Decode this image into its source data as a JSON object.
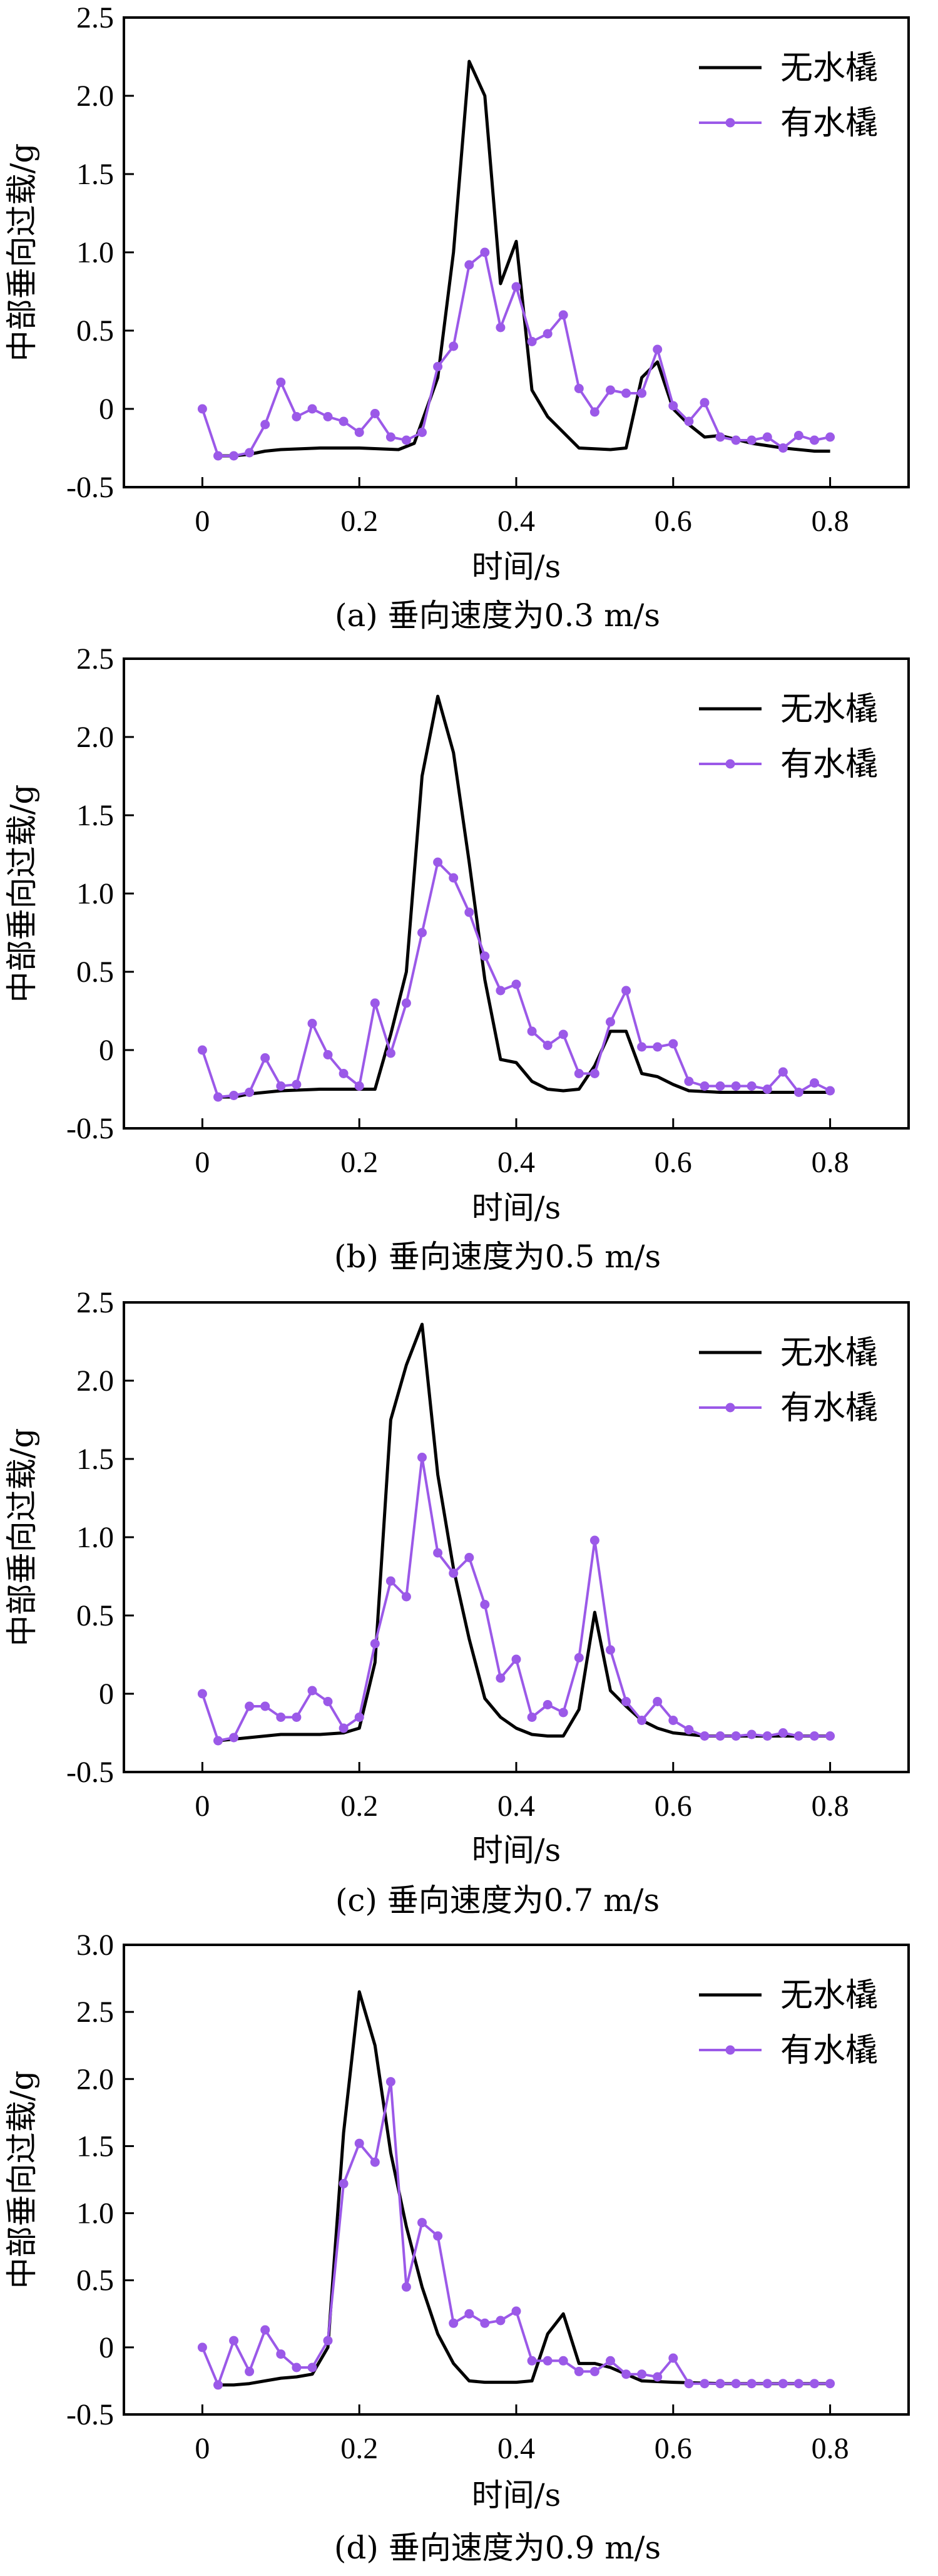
{
  "chart_data": [
    {
      "type": "line",
      "caption": "(a) 垂向速度为0.3 m/s",
      "xlabel": "时间/s",
      "ylabel": "中部垂向过载/g",
      "xlim": [
        -0.1,
        0.9
      ],
      "ylim": [
        -0.5,
        2.5
      ],
      "xticks": [
        "0",
        "0.2",
        "0.4",
        "0.6",
        "0.8"
      ],
      "xtick_values": [
        0,
        0.2,
        0.4,
        0.6,
        0.8
      ],
      "yticks": [
        "-0.5",
        "0",
        "0.5",
        "1.0",
        "1.5",
        "2.0",
        "2.5"
      ],
      "ytick_values": [
        -0.5,
        0,
        0.5,
        1.0,
        1.5,
        2.0,
        2.5
      ],
      "legend_position": "top-right",
      "series": [
        {
          "name": "无水橇",
          "color": "#000000",
          "markers": false,
          "x": [
            0.02,
            0.04,
            0.06,
            0.08,
            0.1,
            0.15,
            0.2,
            0.25,
            0.27,
            0.3,
            0.32,
            0.34,
            0.36,
            0.38,
            0.4,
            0.42,
            0.44,
            0.48,
            0.52,
            0.54,
            0.56,
            0.58,
            0.6,
            0.62,
            0.64,
            0.66,
            0.7,
            0.74,
            0.78,
            0.8
          ],
          "y": [
            -0.3,
            -0.3,
            -0.29,
            -0.27,
            -0.26,
            -0.25,
            -0.25,
            -0.26,
            -0.22,
            0.2,
            1.0,
            2.22,
            2.0,
            0.8,
            1.07,
            0.12,
            -0.05,
            -0.25,
            -0.26,
            -0.25,
            0.2,
            0.3,
            0.0,
            -0.1,
            -0.18,
            -0.17,
            -0.22,
            -0.25,
            -0.27,
            -0.27
          ]
        },
        {
          "name": "有水橇",
          "color": "#9b59e8",
          "markers": true,
          "x": [
            0.0,
            0.02,
            0.04,
            0.06,
            0.08,
            0.1,
            0.12,
            0.14,
            0.16,
            0.18,
            0.2,
            0.22,
            0.24,
            0.26,
            0.28,
            0.3,
            0.32,
            0.34,
            0.36,
            0.38,
            0.4,
            0.42,
            0.44,
            0.46,
            0.48,
            0.5,
            0.52,
            0.54,
            0.56,
            0.58,
            0.6,
            0.62,
            0.64,
            0.66,
            0.68,
            0.7,
            0.72,
            0.74,
            0.76,
            0.78,
            0.8
          ],
          "y": [
            0.0,
            -0.3,
            -0.3,
            -0.28,
            -0.1,
            0.17,
            -0.05,
            0.0,
            -0.05,
            -0.08,
            -0.15,
            -0.03,
            -0.18,
            -0.2,
            -0.15,
            0.27,
            0.4,
            0.92,
            1.0,
            0.52,
            0.78,
            0.43,
            0.48,
            0.6,
            0.13,
            -0.02,
            0.12,
            0.1,
            0.1,
            0.38,
            0.02,
            -0.08,
            0.04,
            -0.18,
            -0.2,
            -0.2,
            -0.18,
            -0.25,
            -0.17,
            -0.2,
            -0.18
          ]
        }
      ]
    },
    {
      "type": "line",
      "caption": "(b) 垂向速度为0.5 m/s",
      "xlabel": "时间/s",
      "ylabel": "中部垂向过载/g",
      "xlim": [
        -0.1,
        0.9
      ],
      "ylim": [
        -0.5,
        2.5
      ],
      "xticks": [
        "0",
        "0.2",
        "0.4",
        "0.6",
        "0.8"
      ],
      "xtick_values": [
        0,
        0.2,
        0.4,
        0.6,
        0.8
      ],
      "yticks": [
        "-0.5",
        "0",
        "0.5",
        "1.0",
        "1.5",
        "2.0",
        "2.5"
      ],
      "ytick_values": [
        -0.5,
        0,
        0.5,
        1.0,
        1.5,
        2.0,
        2.5
      ],
      "legend_position": "top-right",
      "series": [
        {
          "name": "无水橇",
          "color": "#000000",
          "markers": false,
          "x": [
            0.02,
            0.04,
            0.06,
            0.08,
            0.1,
            0.15,
            0.2,
            0.22,
            0.24,
            0.26,
            0.28,
            0.3,
            0.32,
            0.34,
            0.36,
            0.38,
            0.4,
            0.42,
            0.44,
            0.46,
            0.48,
            0.5,
            0.52,
            0.54,
            0.56,
            0.58,
            0.6,
            0.62,
            0.66,
            0.7,
            0.74,
            0.78,
            0.8
          ],
          "y": [
            -0.3,
            -0.3,
            -0.28,
            -0.27,
            -0.26,
            -0.25,
            -0.25,
            -0.25,
            0.1,
            0.5,
            1.75,
            2.26,
            1.9,
            1.2,
            0.45,
            -0.06,
            -0.08,
            -0.2,
            -0.25,
            -0.26,
            -0.25,
            -0.1,
            0.12,
            0.12,
            -0.15,
            -0.17,
            -0.22,
            -0.26,
            -0.27,
            -0.27,
            -0.27,
            -0.27,
            -0.27
          ]
        },
        {
          "name": "有水橇",
          "color": "#9b59e8",
          "markers": true,
          "x": [
            0.0,
            0.02,
            0.04,
            0.06,
            0.08,
            0.1,
            0.12,
            0.14,
            0.16,
            0.18,
            0.2,
            0.22,
            0.24,
            0.26,
            0.28,
            0.3,
            0.32,
            0.34,
            0.36,
            0.38,
            0.4,
            0.42,
            0.44,
            0.46,
            0.48,
            0.5,
            0.52,
            0.54,
            0.56,
            0.58,
            0.6,
            0.62,
            0.64,
            0.66,
            0.68,
            0.7,
            0.72,
            0.74,
            0.76,
            0.78,
            0.8
          ],
          "y": [
            0.0,
            -0.3,
            -0.29,
            -0.27,
            -0.05,
            -0.23,
            -0.22,
            0.17,
            -0.03,
            -0.15,
            -0.23,
            0.3,
            -0.02,
            0.3,
            0.75,
            1.2,
            1.1,
            0.88,
            0.6,
            0.38,
            0.42,
            0.12,
            0.03,
            0.1,
            -0.15,
            -0.15,
            0.18,
            0.38,
            0.02,
            0.02,
            0.04,
            -0.2,
            -0.23,
            -0.23,
            -0.23,
            -0.23,
            -0.25,
            -0.14,
            -0.27,
            -0.21,
            -0.26
          ]
        }
      ]
    },
    {
      "type": "line",
      "caption": "(c) 垂向速度为0.7 m/s",
      "xlabel": "时间/s",
      "ylabel": "中部垂向过载/g",
      "xlim": [
        -0.1,
        0.9
      ],
      "ylim": [
        -0.5,
        2.5
      ],
      "xticks": [
        "0",
        "0.2",
        "0.4",
        "0.6",
        "0.8"
      ],
      "xtick_values": [
        0,
        0.2,
        0.4,
        0.6,
        0.8
      ],
      "yticks": [
        "-0.5",
        "0",
        "0.5",
        "1.0",
        "1.5",
        "2.0",
        "2.5"
      ],
      "ytick_values": [
        -0.5,
        0,
        0.5,
        1.0,
        1.5,
        2.0,
        2.5
      ],
      "legend_position": "top-right",
      "series": [
        {
          "name": "无水橇",
          "color": "#000000",
          "markers": false,
          "x": [
            0.02,
            0.04,
            0.06,
            0.08,
            0.1,
            0.15,
            0.18,
            0.2,
            0.22,
            0.24,
            0.26,
            0.28,
            0.3,
            0.32,
            0.34,
            0.36,
            0.38,
            0.4,
            0.42,
            0.44,
            0.46,
            0.48,
            0.5,
            0.52,
            0.54,
            0.56,
            0.58,
            0.6,
            0.64,
            0.7,
            0.74,
            0.78,
            0.8
          ],
          "y": [
            -0.3,
            -0.29,
            -0.28,
            -0.27,
            -0.26,
            -0.26,
            -0.25,
            -0.22,
            0.2,
            1.75,
            2.1,
            2.36,
            1.4,
            0.8,
            0.35,
            -0.03,
            -0.15,
            -0.22,
            -0.26,
            -0.27,
            -0.27,
            -0.1,
            0.52,
            0.02,
            -0.08,
            -0.17,
            -0.22,
            -0.25,
            -0.27,
            -0.27,
            -0.27,
            -0.27,
            -0.27
          ]
        },
        {
          "name": "有水橇",
          "color": "#9b59e8",
          "markers": true,
          "x": [
            0.0,
            0.02,
            0.04,
            0.06,
            0.08,
            0.1,
            0.12,
            0.14,
            0.16,
            0.18,
            0.2,
            0.22,
            0.24,
            0.26,
            0.28,
            0.3,
            0.32,
            0.34,
            0.36,
            0.38,
            0.4,
            0.42,
            0.44,
            0.46,
            0.48,
            0.5,
            0.52,
            0.54,
            0.56,
            0.58,
            0.6,
            0.62,
            0.64,
            0.66,
            0.68,
            0.7,
            0.72,
            0.74,
            0.76,
            0.78,
            0.8
          ],
          "y": [
            0.0,
            -0.3,
            -0.28,
            -0.08,
            -0.08,
            -0.15,
            -0.15,
            0.02,
            -0.05,
            -0.22,
            -0.15,
            0.32,
            0.72,
            0.62,
            1.51,
            0.9,
            0.77,
            0.87,
            0.57,
            0.1,
            0.22,
            -0.15,
            -0.07,
            -0.12,
            0.23,
            0.98,
            0.28,
            -0.05,
            -0.17,
            -0.05,
            -0.17,
            -0.23,
            -0.27,
            -0.27,
            -0.27,
            -0.26,
            -0.27,
            -0.25,
            -0.27,
            -0.27,
            -0.27
          ]
        }
      ]
    },
    {
      "type": "line",
      "caption": "(d) 垂向速度为0.9 m/s",
      "xlabel": "时间/s",
      "ylabel": "中部垂向过载/g",
      "xlim": [
        -0.1,
        0.9
      ],
      "ylim": [
        -0.5,
        3.0
      ],
      "xticks": [
        "0",
        "0.2",
        "0.4",
        "0.6",
        "0.8"
      ],
      "xtick_values": [
        0,
        0.2,
        0.4,
        0.6,
        0.8
      ],
      "yticks": [
        "-0.5",
        "0",
        "0.5",
        "1.0",
        "1.5",
        "2.0",
        "2.5",
        "3.0"
      ],
      "ytick_values": [
        -0.5,
        0,
        0.5,
        1.0,
        1.5,
        2.0,
        2.5,
        3.0
      ],
      "legend_position": "top-right",
      "series": [
        {
          "name": "无水橇",
          "color": "#000000",
          "markers": false,
          "x": [
            0.02,
            0.04,
            0.06,
            0.08,
            0.1,
            0.12,
            0.14,
            0.16,
            0.18,
            0.2,
            0.22,
            0.24,
            0.26,
            0.28,
            0.3,
            0.32,
            0.34,
            0.36,
            0.38,
            0.4,
            0.42,
            0.44,
            0.46,
            0.48,
            0.5,
            0.52,
            0.54,
            0.56,
            0.6,
            0.66,
            0.72,
            0.78,
            0.8
          ],
          "y": [
            -0.28,
            -0.28,
            -0.27,
            -0.25,
            -0.23,
            -0.22,
            -0.2,
            0.0,
            1.6,
            2.65,
            2.25,
            1.45,
            0.9,
            0.45,
            0.1,
            -0.12,
            -0.25,
            -0.26,
            -0.26,
            -0.26,
            -0.25,
            0.1,
            0.25,
            -0.12,
            -0.12,
            -0.15,
            -0.2,
            -0.25,
            -0.26,
            -0.27,
            -0.27,
            -0.27,
            -0.27
          ]
        },
        {
          "name": "有水橇",
          "color": "#9b59e8",
          "markers": true,
          "x": [
            0.0,
            0.02,
            0.04,
            0.06,
            0.08,
            0.1,
            0.12,
            0.14,
            0.16,
            0.18,
            0.2,
            0.22,
            0.24,
            0.26,
            0.28,
            0.3,
            0.32,
            0.34,
            0.36,
            0.38,
            0.4,
            0.42,
            0.44,
            0.46,
            0.48,
            0.5,
            0.52,
            0.54,
            0.56,
            0.58,
            0.6,
            0.62,
            0.64,
            0.66,
            0.68,
            0.7,
            0.72,
            0.74,
            0.76,
            0.78,
            0.8
          ],
          "y": [
            0.0,
            -0.28,
            0.05,
            -0.18,
            0.13,
            -0.05,
            -0.15,
            -0.15,
            0.05,
            1.22,
            1.52,
            1.38,
            1.98,
            0.45,
            0.93,
            0.83,
            0.18,
            0.25,
            0.18,
            0.2,
            0.27,
            -0.1,
            -0.1,
            -0.1,
            -0.18,
            -0.18,
            -0.1,
            -0.2,
            -0.2,
            -0.22,
            -0.08,
            -0.27,
            -0.27,
            -0.27,
            -0.27,
            -0.27,
            -0.27,
            -0.27,
            -0.27,
            -0.27,
            -0.27
          ]
        }
      ]
    }
  ]
}
